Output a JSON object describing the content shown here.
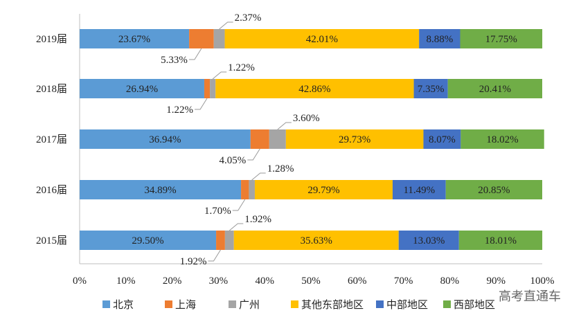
{
  "chart_data": {
    "type": "bar",
    "stacked": true,
    "orientation": "horizontal",
    "categories": [
      "2019届",
      "2018届",
      "2017届",
      "2016届",
      "2015届"
    ],
    "series": [
      {
        "name": "北京",
        "color": "#5B9BD5",
        "values": [
          23.67,
          26.94,
          36.94,
          34.89,
          29.5
        ]
      },
      {
        "name": "上海",
        "color": "#ED7D31",
        "values": [
          5.33,
          1.22,
          4.05,
          1.7,
          1.92
        ]
      },
      {
        "name": "广州",
        "color": "#A5A5A5",
        "values": [
          2.37,
          1.22,
          3.6,
          1.28,
          1.92
        ]
      },
      {
        "name": "其他东部地区",
        "color": "#FFC000",
        "values": [
          42.01,
          42.86,
          29.73,
          29.79,
          35.63
        ]
      },
      {
        "name": "中部地区",
        "color": "#4472C4",
        "values": [
          8.88,
          7.35,
          8.07,
          11.49,
          13.03
        ]
      },
      {
        "name": "西部地区",
        "color": "#70AD47",
        "values": [
          17.75,
          20.41,
          18.02,
          20.85,
          18.01
        ]
      }
    ],
    "labels": [
      [
        "23.67%",
        "5.33%",
        "2.37%",
        "42.01%",
        "8.88%",
        "17.75%"
      ],
      [
        "26.94%",
        "1.22%",
        "1.22%",
        "42.86%",
        "7.35%",
        "20.41%"
      ],
      [
        "36.94%",
        "4.05%",
        "3.60%",
        "29.73%",
        "8.07%",
        "18.02%"
      ],
      [
        "34.89%",
        "1.70%",
        "1.28%",
        "29.79%",
        "11.49%",
        "20.85%"
      ],
      [
        "29.50%",
        "1.92%",
        "1.92%",
        "35.63%",
        "13.03%",
        "18.01%"
      ]
    ],
    "xticks": [
      "0%",
      "10%",
      "20%",
      "30%",
      "40%",
      "50%",
      "60%",
      "70%",
      "80%",
      "90%",
      "100%"
    ],
    "xlim": [
      0,
      100
    ],
    "grid": false,
    "legend_position": "bottom",
    "watermark": "高考直通车"
  }
}
